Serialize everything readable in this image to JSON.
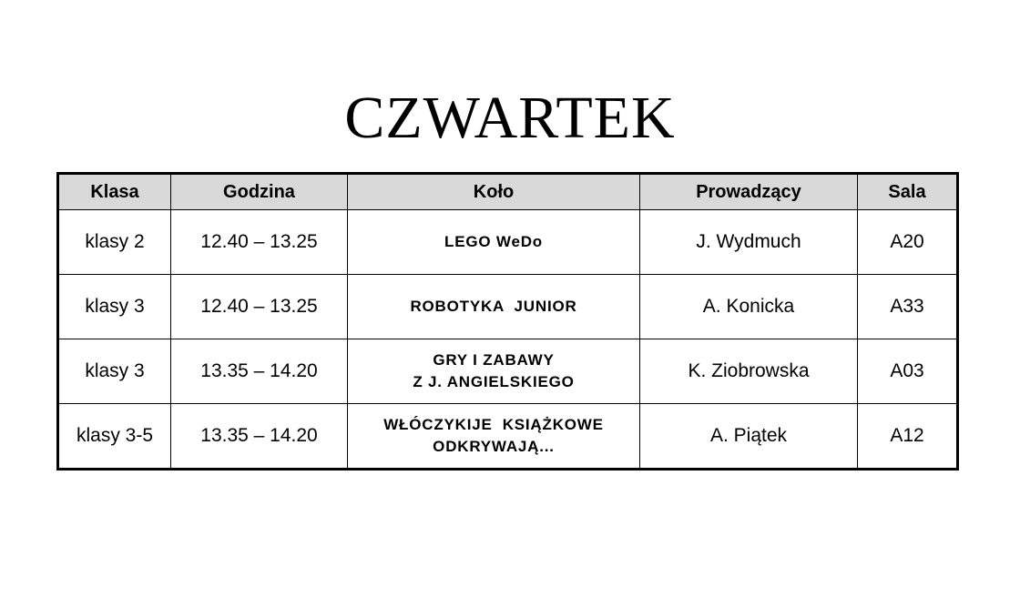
{
  "title": "CZWARTEK",
  "table": {
    "headers": [
      "Klasa",
      "Godzina",
      "Koło",
      "Prowadzący",
      "Sala"
    ],
    "rows": [
      {
        "klasa": "klasy 2",
        "godzina": "12.40 – 13.25",
        "kolo": [
          "LEGO WeDo"
        ],
        "prowadzacy": "J. Wydmuch",
        "sala": "A20"
      },
      {
        "klasa": "klasy 3",
        "godzina": "12.40 – 13.25",
        "kolo": [
          "ROBOTYKA  JUNIOR"
        ],
        "prowadzacy": "A. Konicka",
        "sala": "A33"
      },
      {
        "klasa": "klasy 3",
        "godzina": "13.35 – 14.20",
        "kolo": [
          "GRY I ZABAWY",
          "Z J. ANGIELSKIEGO"
        ],
        "prowadzacy": "K. Ziobrowska",
        "sala": "A03"
      },
      {
        "klasa": "klasy 3-5",
        "godzina": "13.35 – 14.20",
        "kolo": [
          "WŁÓCZYKIJE  KSIĄŻKOWE",
          "ODKRYWAJĄ..."
        ],
        "prowadzacy": "A. Piątek",
        "sala": "A12"
      }
    ]
  }
}
